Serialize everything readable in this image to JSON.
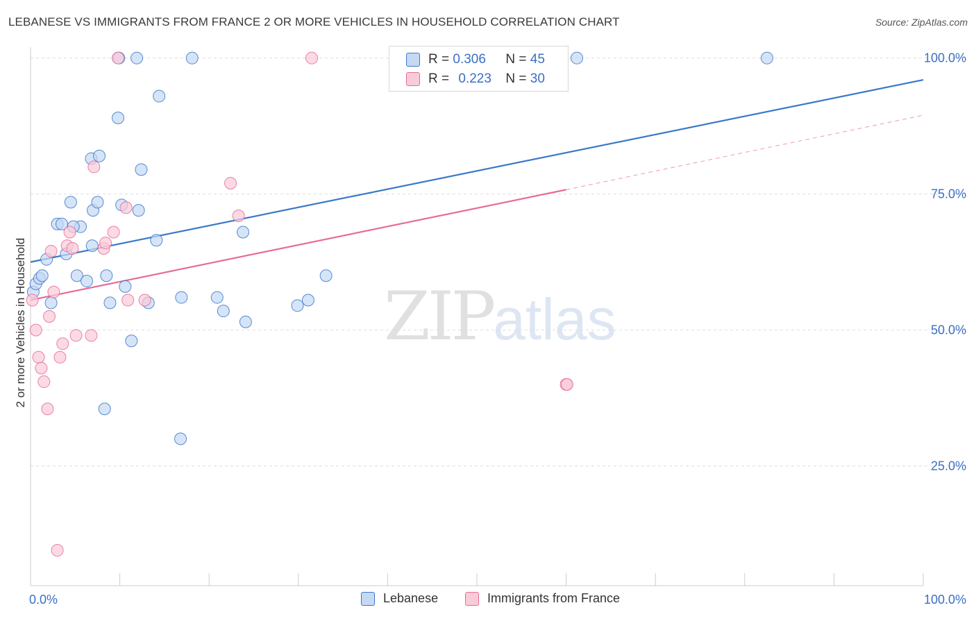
{
  "title": "LEBANESE VS IMMIGRANTS FROM FRANCE 2 OR MORE VEHICLES IN HOUSEHOLD CORRELATION CHART",
  "source": "Source: ZipAtlas.com",
  "watermark": {
    "zip": "ZIP",
    "atlas": "atlas"
  },
  "colors": {
    "blue": "#3a78c9",
    "pink": "#e76b97",
    "blue_fill": "#c5d9f3",
    "pink_fill": "#f9cbd9",
    "axis_text": "#3a6fc4"
  },
  "legend_stats": {
    "r_label": "R =",
    "n_label": "N =",
    "rows": [
      {
        "series": "Lebanese",
        "r": "0.306",
        "n": "45"
      },
      {
        "series": "Immigrants from France",
        "r": "0.223",
        "n": "30"
      }
    ]
  },
  "chart_data": {
    "type": "scatter",
    "title": "LEBANESE VS IMMIGRANTS FROM FRANCE 2 OR MORE VEHICLES IN HOUSEHOLD CORRELATION CHART",
    "xlabel": "",
    "ylabel": "2 or more Vehicles in Household",
    "xlim": [
      0,
      100
    ],
    "ylim": [
      3,
      102
    ],
    "x_tick_labels": [
      {
        "value": 0,
        "label": "0.0%"
      },
      {
        "value": 100,
        "label": "100.0%"
      }
    ],
    "y_tick_labels": [
      {
        "value": 100,
        "label": "100.0%"
      },
      {
        "value": 75,
        "label": "75.0%"
      },
      {
        "value": 50,
        "label": "50.0%"
      },
      {
        "value": 25,
        "label": "25.0%"
      }
    ],
    "x_minor_ticks": [
      0,
      10,
      20,
      30,
      40,
      50,
      60,
      70,
      80,
      90,
      100
    ],
    "grid": true,
    "legend": "bottom",
    "series": [
      {
        "name": "Lebanese",
        "color": "#3a78c9",
        "points": [
          [
            0.3,
            57.0
          ],
          [
            0.6,
            58.5
          ],
          [
            1.0,
            59.5
          ],
          [
            1.3,
            60.0
          ],
          [
            2.3,
            55.0
          ],
          [
            1.8,
            63.0
          ],
          [
            3.0,
            69.5
          ],
          [
            3.5,
            69.5
          ],
          [
            4.0,
            64.0
          ],
          [
            4.5,
            73.5
          ],
          [
            5.6,
            69.0
          ],
          [
            4.8,
            69.0
          ],
          [
            5.2,
            60.0
          ],
          [
            6.3,
            59.0
          ],
          [
            7.0,
            72.0
          ],
          [
            6.8,
            81.5
          ],
          [
            6.9,
            65.5
          ],
          [
            7.5,
            73.5
          ],
          [
            7.7,
            82.0
          ],
          [
            8.3,
            35.5
          ],
          [
            8.5,
            60.0
          ],
          [
            8.9,
            55.0
          ],
          [
            9.8,
            89.0
          ],
          [
            9.9,
            100
          ],
          [
            10.2,
            73.0
          ],
          [
            10.6,
            58.0
          ],
          [
            11.3,
            48.0
          ],
          [
            11.9,
            100
          ],
          [
            12.1,
            72.0
          ],
          [
            12.4,
            79.5
          ],
          [
            13.2,
            55.0
          ],
          [
            14.1,
            66.5
          ],
          [
            14.4,
            93.0
          ],
          [
            16.9,
            56.0
          ],
          [
            16.8,
            30.0
          ],
          [
            18.1,
            100
          ],
          [
            20.9,
            56.0
          ],
          [
            21.6,
            53.5
          ],
          [
            23.8,
            68.0
          ],
          [
            24.1,
            51.5
          ],
          [
            29.9,
            54.5
          ],
          [
            31.1,
            55.5
          ],
          [
            33.1,
            60.0
          ],
          [
            61.2,
            100
          ],
          [
            82.5,
            100
          ]
        ],
        "trend": {
          "x_start": 0,
          "y_start": 62.5,
          "x_end": 100,
          "y_end": 96.0
        }
      },
      {
        "name": "Immigrants from France",
        "color": "#e76b97",
        "points": [
          [
            0.2,
            55.5
          ],
          [
            0.6,
            50.0
          ],
          [
            0.9,
            45.0
          ],
          [
            1.2,
            43.0
          ],
          [
            1.5,
            40.5
          ],
          [
            1.9,
            35.5
          ],
          [
            2.1,
            52.5
          ],
          [
            2.3,
            64.5
          ],
          [
            2.6,
            57.0
          ],
          [
            3.0,
            9.5
          ],
          [
            3.3,
            45.0
          ],
          [
            3.6,
            47.5
          ],
          [
            4.1,
            65.5
          ],
          [
            4.4,
            68.0
          ],
          [
            4.7,
            65.0
          ],
          [
            5.1,
            49.0
          ],
          [
            6.8,
            49.0
          ],
          [
            7.1,
            80.0
          ],
          [
            8.2,
            65.0
          ],
          [
            8.4,
            66.0
          ],
          [
            9.3,
            68.0
          ],
          [
            9.8,
            100
          ],
          [
            10.7,
            72.5
          ],
          [
            10.9,
            55.5
          ],
          [
            12.8,
            55.5
          ],
          [
            22.4,
            77.0
          ],
          [
            23.3,
            71.0
          ],
          [
            31.5,
            100
          ],
          [
            60.0,
            40.0
          ],
          [
            60.1,
            40.0
          ]
        ],
        "trend": {
          "x_start": 0,
          "y_start": 55.5,
          "x_end": 60,
          "y_end": 75.8
        },
        "trend_extension": {
          "x_start": 60,
          "y_start": 75.8,
          "x_end": 100,
          "y_end": 89.5
        }
      }
    ]
  }
}
